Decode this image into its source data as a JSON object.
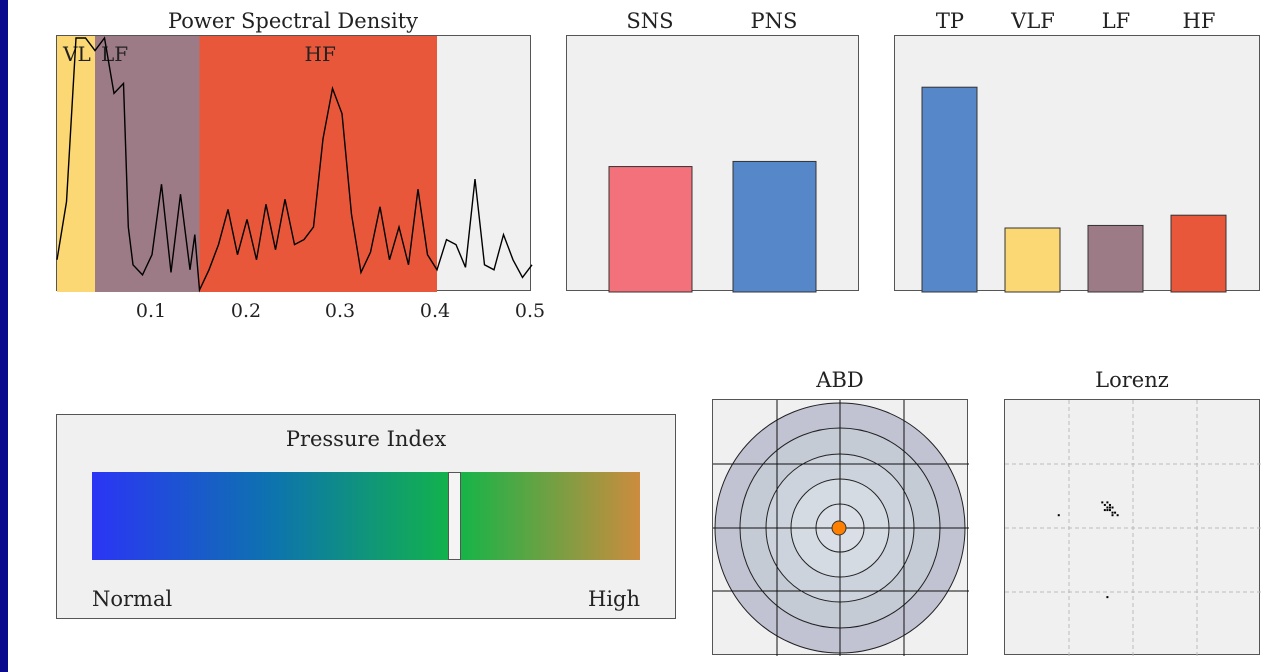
{
  "psd": {
    "title": "Power Spectral Density",
    "x_ticks": [
      "0.1",
      "0.2",
      "0.3",
      "0.4",
      "0.5"
    ],
    "bands": [
      {
        "label": "VL",
        "from": 0.0,
        "to": 0.04,
        "color": "#fbd873"
      },
      {
        "label": "LF",
        "from": 0.04,
        "to": 0.15,
        "color": "#9c7b86"
      },
      {
        "label": "HF",
        "from": 0.15,
        "to": 0.4,
        "color": "#e8573a"
      }
    ],
    "background": "#f0f0f0"
  },
  "ans": {
    "labels": [
      "SNS",
      "PNS"
    ]
  },
  "bands_bar": {
    "labels": [
      "TP",
      "VLF",
      "LF",
      "HF"
    ]
  },
  "pressure": {
    "title": "Pressure Index",
    "low_label": "Normal",
    "high_label": "High",
    "level": 0.66,
    "gradient": [
      "#2b35f5",
      "#0d74ad",
      "#12b548",
      "#cc8c3e"
    ]
  },
  "abd": {
    "title": "ABD",
    "marker_color": "#ff8000"
  },
  "lorenz": {
    "title": "Lorenz"
  },
  "chart_data": [
    {
      "type": "line",
      "title": "Power Spectral Density",
      "xlim": [
        0,
        0.5
      ],
      "x": [
        0.0,
        0.01,
        0.02,
        0.03,
        0.04,
        0.05,
        0.06,
        0.07,
        0.075,
        0.08,
        0.09,
        0.1,
        0.11,
        0.12,
        0.13,
        0.14,
        0.145,
        0.15,
        0.16,
        0.17,
        0.18,
        0.19,
        0.2,
        0.21,
        0.22,
        0.23,
        0.24,
        0.25,
        0.26,
        0.27,
        0.28,
        0.29,
        0.3,
        0.31,
        0.32,
        0.33,
        0.34,
        0.35,
        0.36,
        0.37,
        0.38,
        0.39,
        0.4,
        0.41,
        0.42,
        0.43,
        0.44,
        0.45,
        0.46,
        0.47,
        0.48,
        0.49,
        0.5
      ],
      "y": [
        12,
        35,
        100,
        100,
        95,
        100,
        78,
        82,
        25,
        10,
        6,
        14,
        42,
        7,
        38,
        8,
        22,
        0,
        8,
        18,
        32,
        14,
        28,
        12,
        34,
        16,
        36,
        18,
        20,
        25,
        60,
        80,
        70,
        30,
        7,
        15,
        33,
        12,
        25,
        10,
        40,
        14,
        8,
        20,
        18,
        9,
        44,
        10,
        8,
        22,
        12,
        5,
        10
      ],
      "ylim": [
        0,
        100
      ]
    },
    {
      "type": "bar",
      "categories": [
        "SNS",
        "PNS"
      ],
      "values": [
        49,
        51
      ],
      "colors": [
        "#f2717a",
        "#5587c9"
      ],
      "ylim": [
        0,
        100
      ]
    },
    {
      "type": "bar",
      "categories": [
        "TP",
        "VLF",
        "LF",
        "HF"
      ],
      "values": [
        80,
        25,
        26,
        30
      ],
      "colors": [
        "#5587c9",
        "#fbd873",
        "#9c7b86",
        "#e8573a"
      ],
      "ylim": [
        0,
        100
      ]
    },
    {
      "type": "scatter",
      "title": "Lorenz",
      "points": [
        [
          0.4,
          0.43
        ],
        [
          0.41,
          0.42
        ],
        [
          0.42,
          0.44
        ],
        [
          0.39,
          0.41
        ],
        [
          0.4,
          0.4
        ],
        [
          0.42,
          0.45
        ],
        [
          0.41,
          0.43
        ],
        [
          0.43,
          0.44
        ],
        [
          0.4,
          0.42
        ],
        [
          0.39,
          0.43
        ],
        [
          0.41,
          0.41
        ],
        [
          0.42,
          0.42
        ],
        [
          0.38,
          0.4
        ],
        [
          0.44,
          0.45
        ],
        [
          0.21,
          0.45
        ],
        [
          0.4,
          0.77
        ]
      ],
      "xlim": [
        0,
        1
      ],
      "ylim": [
        0,
        1
      ]
    }
  ]
}
